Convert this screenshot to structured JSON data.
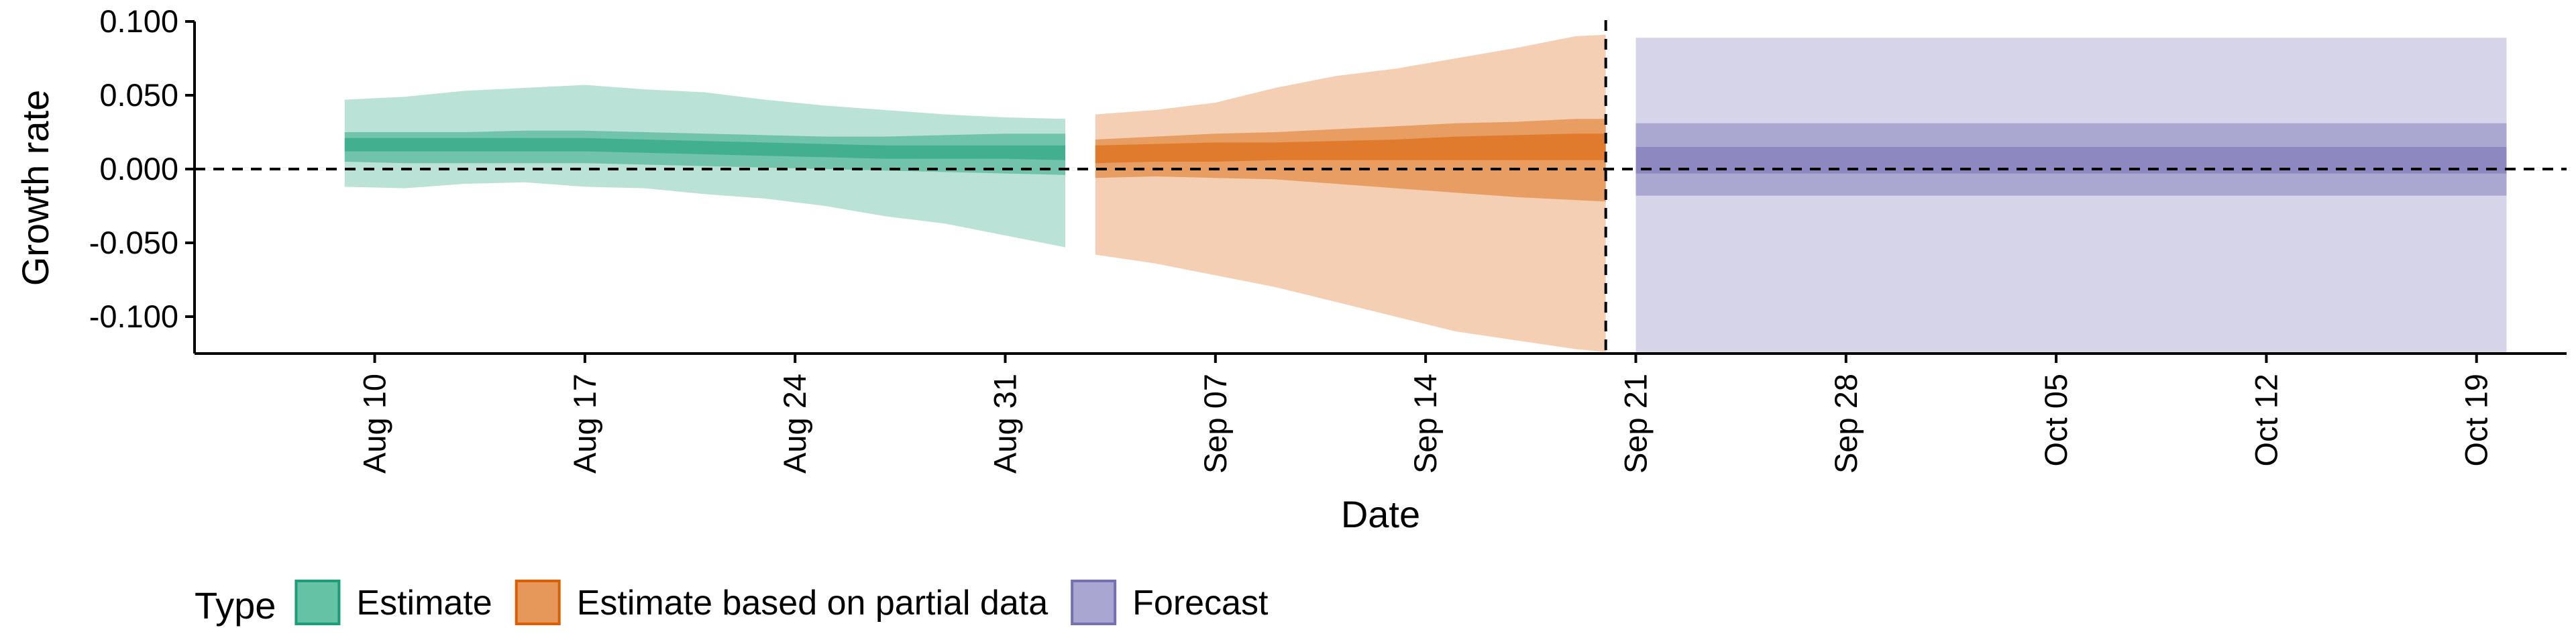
{
  "chart_data": {
    "type": "area",
    "title": "",
    "xlabel": "Date",
    "ylabel": "Growth rate",
    "ylim": [
      -0.125,
      0.1
    ],
    "xlim": [
      "2020-08-04",
      "2020-10-22"
    ],
    "y_ticks": [
      "0.100",
      "0.050",
      "0.000",
      "-0.050",
      "-0.100"
    ],
    "y_tick_values": [
      0.1,
      0.05,
      0.0,
      -0.05,
      -0.1
    ],
    "x_ticks": [
      "Aug 10",
      "Aug 17",
      "Aug 24",
      "Aug 31",
      "Sep 07",
      "Sep 14",
      "Sep 21",
      "Sep 28",
      "Oct 05",
      "Oct 12",
      "Oct 19"
    ],
    "x_tick_dates": [
      "2020-08-10",
      "2020-08-17",
      "2020-08-24",
      "2020-08-31",
      "2020-09-07",
      "2020-09-14",
      "2020-09-21",
      "2020-09-28",
      "2020-10-05",
      "2020-10-12",
      "2020-10-19"
    ],
    "grid": false,
    "reference_lines": {
      "horizontal_y": 0.0,
      "vertical_date": "2020-09-20"
    },
    "legend": {
      "title": "Type",
      "position": "bottom-left",
      "items": [
        {
          "label": "Estimate",
          "fill": "#66c2a5",
          "stroke": "#1b9e77"
        },
        {
          "label": "Estimate based on partial data",
          "fill": "#e5985a",
          "stroke": "#d95f02"
        },
        {
          "label": "Forecast",
          "fill": "#a9a6d1",
          "stroke": "#7570b3"
        }
      ]
    },
    "series": [
      {
        "name": "Estimate",
        "color": "#1b9e77",
        "dates": [
          "2020-08-09",
          "2020-08-11",
          "2020-08-13",
          "2020-08-15",
          "2020-08-17",
          "2020-08-19",
          "2020-08-21",
          "2020-08-23",
          "2020-08-25",
          "2020-08-27",
          "2020-08-29",
          "2020-08-31",
          "2020-09-02"
        ],
        "median": [
          0.017,
          0.016,
          0.016,
          0.016,
          0.016,
          0.015,
          0.014,
          0.013,
          0.012,
          0.011,
          0.011,
          0.011,
          0.011
        ],
        "lower_20": [
          0.012,
          0.012,
          0.012,
          0.012,
          0.012,
          0.011,
          0.01,
          0.009,
          0.008,
          0.007,
          0.007,
          0.007,
          0.006
        ],
        "upper_20": [
          0.021,
          0.021,
          0.021,
          0.021,
          0.021,
          0.02,
          0.019,
          0.018,
          0.017,
          0.016,
          0.016,
          0.016,
          0.016
        ],
        "lower_50": [
          0.005,
          0.004,
          0.004,
          0.004,
          0.004,
          0.003,
          0.002,
          0.001,
          0.0,
          -0.001,
          -0.002,
          -0.003,
          -0.004
        ],
        "upper_50": [
          0.025,
          0.025,
          0.025,
          0.026,
          0.026,
          0.025,
          0.024,
          0.023,
          0.022,
          0.022,
          0.023,
          0.024,
          0.024
        ],
        "lower_90": [
          -0.012,
          -0.013,
          -0.01,
          -0.009,
          -0.012,
          -0.013,
          -0.017,
          -0.02,
          -0.025,
          -0.032,
          -0.037,
          -0.045,
          -0.053
        ],
        "upper_90": [
          0.047,
          0.049,
          0.053,
          0.055,
          0.057,
          0.054,
          0.052,
          0.047,
          0.043,
          0.04,
          0.037,
          0.035,
          0.034
        ]
      },
      {
        "name": "Estimate based on partial data",
        "color": "#d95f02",
        "dates": [
          "2020-09-03",
          "2020-09-05",
          "2020-09-07",
          "2020-09-09",
          "2020-09-11",
          "2020-09-13",
          "2020-09-15",
          "2020-09-17",
          "2020-09-19",
          "2020-09-20"
        ],
        "median": [
          0.01,
          0.011,
          0.012,
          0.012,
          0.013,
          0.013,
          0.014,
          0.014,
          0.015,
          0.015
        ],
        "lower_20": [
          0.004,
          0.005,
          0.005,
          0.006,
          0.006,
          0.006,
          0.006,
          0.006,
          0.006,
          0.006
        ],
        "upper_20": [
          0.016,
          0.017,
          0.018,
          0.018,
          0.019,
          0.02,
          0.022,
          0.023,
          0.024,
          0.024
        ],
        "lower_50": [
          -0.006,
          -0.005,
          -0.006,
          -0.007,
          -0.01,
          -0.013,
          -0.016,
          -0.019,
          -0.021,
          -0.022
        ],
        "upper_50": [
          0.02,
          0.022,
          0.024,
          0.025,
          0.027,
          0.029,
          0.031,
          0.032,
          0.034,
          0.034
        ],
        "lower_90": [
          -0.058,
          -0.064,
          -0.072,
          -0.08,
          -0.09,
          -0.1,
          -0.11,
          -0.116,
          -0.122,
          -0.124
        ],
        "upper_90": [
          0.037,
          0.04,
          0.045,
          0.055,
          0.063,
          0.068,
          0.075,
          0.082,
          0.09,
          0.091
        ]
      },
      {
        "name": "Forecast",
        "color": "#7570b3",
        "dates": [
          "2020-09-21",
          "2020-10-20"
        ],
        "median": [
          0.0,
          0.0
        ],
        "lower_20": [
          -0.003,
          -0.003
        ],
        "upper_20": [
          0.015,
          0.015
        ],
        "lower_50": [
          -0.018,
          -0.018
        ],
        "upper_50": [
          0.031,
          0.031
        ],
        "lower_90": [
          -0.124,
          -0.124
        ],
        "upper_90": [
          0.089,
          0.089
        ]
      }
    ]
  }
}
